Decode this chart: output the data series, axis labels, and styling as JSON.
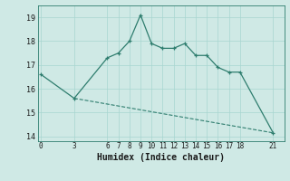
{
  "xlabel": "Humidex (Indice chaleur)",
  "x_ticks": [
    0,
    3,
    6,
    7,
    8,
    9,
    10,
    11,
    12,
    13,
    14,
    15,
    16,
    17,
    18,
    21
  ],
  "line1_x": [
    0,
    3,
    6,
    7,
    8,
    9,
    10,
    11,
    12,
    13,
    14,
    15,
    16,
    17,
    18,
    21
  ],
  "line1_y": [
    16.6,
    15.6,
    17.3,
    17.5,
    18.0,
    19.1,
    17.9,
    17.7,
    17.7,
    17.9,
    17.4,
    17.4,
    16.9,
    16.7,
    16.7,
    14.15
  ],
  "line2_x": [
    3,
    21
  ],
  "line2_y": [
    15.6,
    14.15
  ],
  "color": "#2e7d6e",
  "bg_color": "#cfe9e5",
  "grid_color": "#a8d5d0",
  "ylim": [
    13.8,
    19.5
  ],
  "xlim": [
    -0.3,
    22.0
  ],
  "yticks": [
    14,
    15,
    16,
    17,
    18,
    19
  ]
}
